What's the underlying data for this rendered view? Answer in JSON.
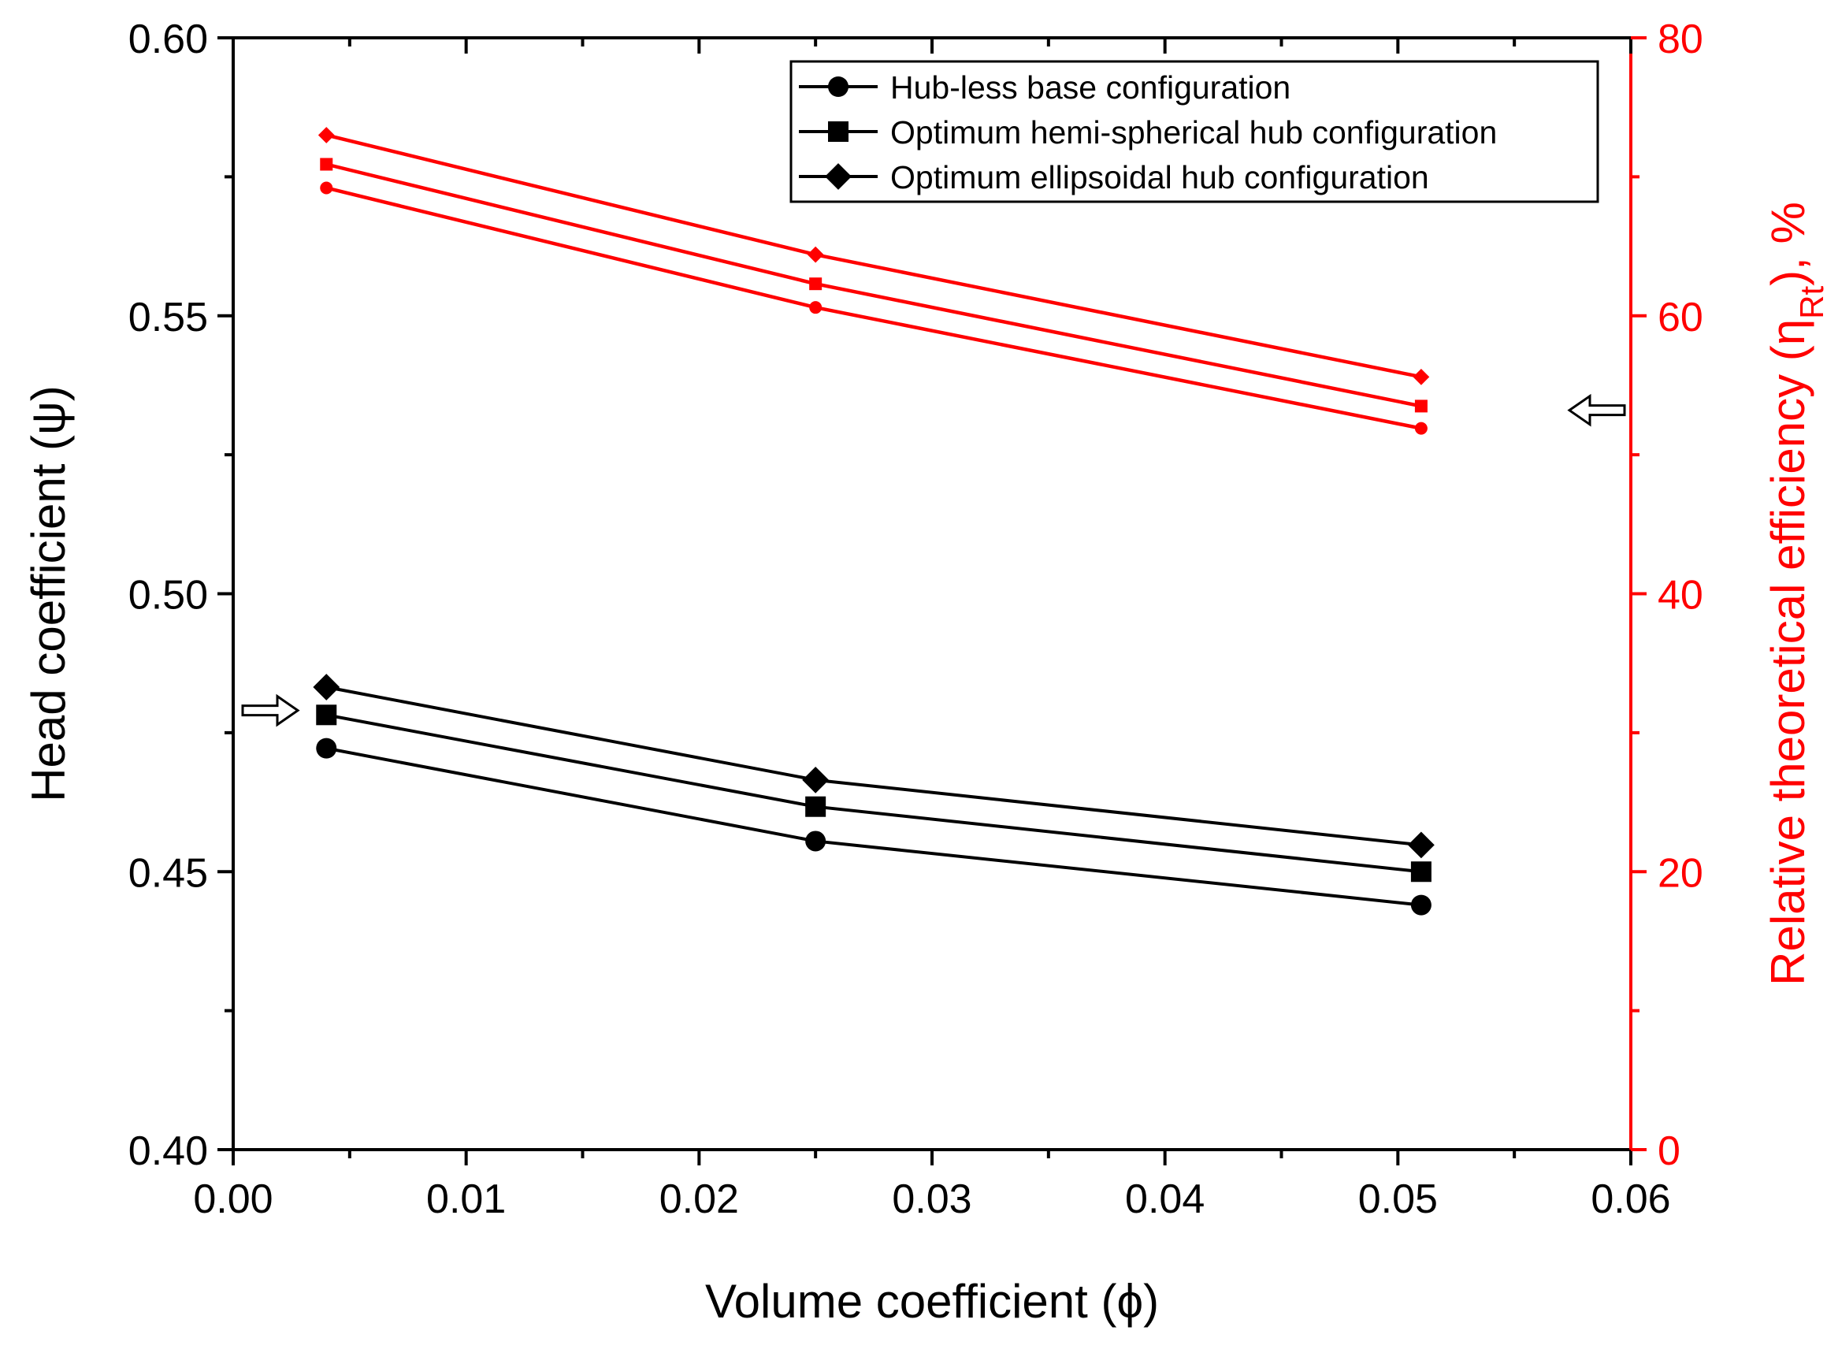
{
  "chart_data": {
    "type": "line",
    "xlabel": "Volume coefficient (ϕ)",
    "ylabel_left": "Head coefficient (ψ)",
    "ylabel_right_parts": {
      "main": "Relative theoretical efficiency (η",
      "sub": "Rt",
      "tail": "), %"
    },
    "xlim": [
      0,
      0.06
    ],
    "ylim_left": [
      0.4,
      0.6
    ],
    "ylim_right": [
      0,
      80
    ],
    "x_ticks": [
      "0.00",
      "0.01",
      "0.02",
      "0.03",
      "0.04",
      "0.05",
      "0.06"
    ],
    "y_left_ticks": [
      "0.40",
      "0.45",
      "0.50",
      "0.55",
      "0.60"
    ],
    "y_right_ticks": [
      "0",
      "20",
      "40",
      "60",
      "80"
    ],
    "x": [
      0.004,
      0.025,
      0.051
    ],
    "series": [
      {
        "name": "Hub-less base configuration",
        "marker": "circle",
        "axis": "left",
        "color": "#000000",
        "values": [
          0.4722,
          0.4555,
          0.444
        ]
      },
      {
        "name": "Optimum hemi-spherical hub configuration",
        "marker": "square",
        "axis": "left",
        "color": "#000000",
        "values": [
          0.4782,
          0.4617,
          0.45
        ]
      },
      {
        "name": "Optimum ellipsoidal hub configuration",
        "marker": "diamond",
        "axis": "left",
        "color": "#000000",
        "values": [
          0.4832,
          0.4665,
          0.4548
        ]
      },
      {
        "name": "Hub-less base configuration efficiency",
        "marker": "circle",
        "axis": "right",
        "color": "#ff0000",
        "values": [
          69.2,
          60.6,
          51.9
        ]
      },
      {
        "name": "Optimum hemi-spherical hub configuration efficiency",
        "marker": "square",
        "axis": "right",
        "color": "#ff0000",
        "values": [
          70.9,
          62.3,
          53.5
        ]
      },
      {
        "name": "Optimum ellipsoidal hub configuration efficiency",
        "marker": "diamond",
        "axis": "right",
        "color": "#ff0000",
        "values": [
          73.0,
          64.4,
          55.6
        ]
      }
    ],
    "legend_entries": [
      {
        "label": "Hub-less base configuration",
        "marker": "circle"
      },
      {
        "label": "Optimum hemi-spherical hub configuration",
        "marker": "square"
      },
      {
        "label": "Optimum ellipsoidal hub configuration",
        "marker": "diamond"
      }
    ],
    "legend_position": "top-right",
    "annotations": [
      {
        "type": "arrow",
        "direction": "right",
        "points_to": "left axis",
        "at_left_value": 0.479
      },
      {
        "type": "arrow",
        "direction": "left",
        "points_to": "right axis",
        "at_right_value": 53.2
      }
    ],
    "colors": {
      "left_axis": "#000000",
      "right_axis": "#ff0000"
    },
    "grid": false
  }
}
